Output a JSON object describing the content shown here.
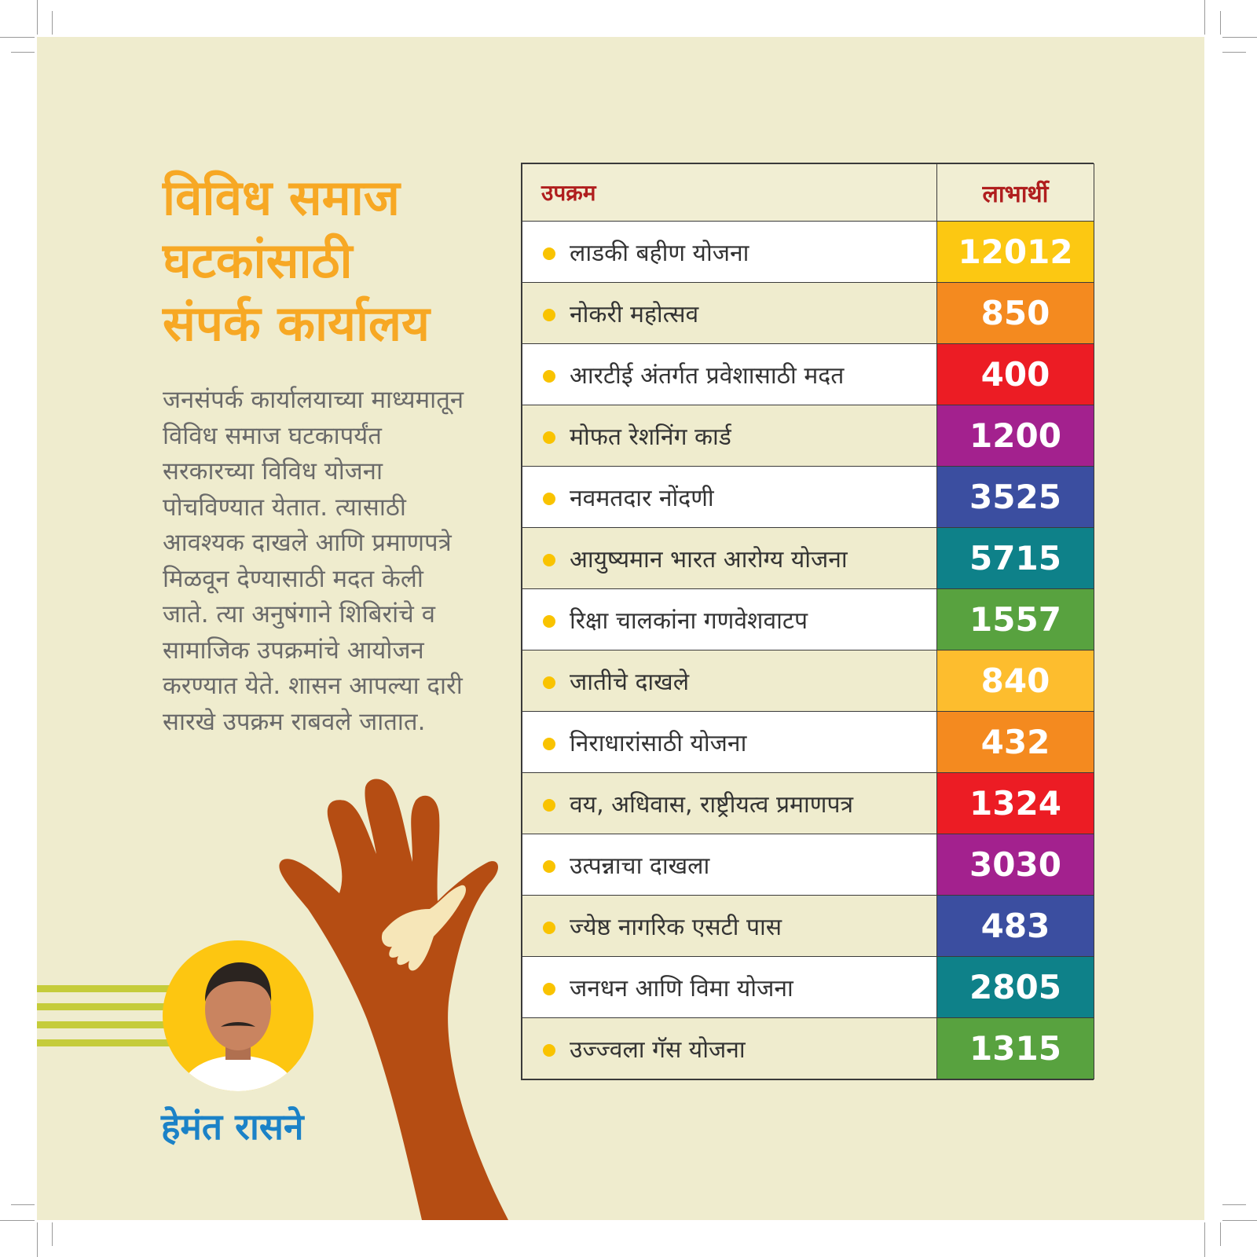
{
  "title": {
    "lines": [
      "विविध समाज",
      "घटकांसाठी",
      "संपर्क कार्यालय"
    ]
  },
  "description": "जनसंपर्क कार्यालयाच्या माध्यमातून विविध समाज घटकापर्यंत सरकारच्या विविध योजना पोचविण्यात येतात. त्यासाठी आवश्यक दाखले आणि प्रमाणपत्रे मिळवून देण्यासाठी मदत केली जाते. त्या अनुषंगाने शिबिरांचे व सामाजिक उपक्रमांचे आयोजन करण्यात येते. शासन आपल्या दारी सारखे उपक्रम राबवले जातात.",
  "person": {
    "name": "हेमंत रासने"
  },
  "table": {
    "header": {
      "scheme": "उपक्रम",
      "beneficiaries": "लाभार्थी"
    },
    "rows": [
      {
        "scheme": "लाडकी बहीण योजना",
        "beneficiaries": "12012",
        "color": "#fcc812",
        "bg": "#ffffff"
      },
      {
        "scheme": "नोकरी महोत्सव",
        "beneficiaries": "850",
        "color": "#f48a1f",
        "bg": "#efecce"
      },
      {
        "scheme": "आरटीई अंतर्गत प्रवेशासाठी मदत",
        "beneficiaries": "400",
        "color": "#ec1c24",
        "bg": "#ffffff"
      },
      {
        "scheme": "मोफत रेशनिंग कार्ड",
        "beneficiaries": "1200",
        "color": "#a3218e",
        "bg": "#efecce"
      },
      {
        "scheme": "नवमतदार नोंदणी",
        "beneficiaries": "3525",
        "color": "#3b4ea0",
        "bg": "#ffffff"
      },
      {
        "scheme": "आयुष्यमान भारत आरोग्य योजना",
        "beneficiaries": "5715",
        "color": "#0e8189",
        "bg": "#efecce"
      },
      {
        "scheme": "रिक्षा चालकांना गणवेशवाटप",
        "beneficiaries": "1557",
        "color": "#58a23f",
        "bg": "#ffffff"
      },
      {
        "scheme": "जातीचे दाखले",
        "beneficiaries": "840",
        "color": "#fdbd2e",
        "bg": "#efecce"
      },
      {
        "scheme": "निराधारांसाठी योजना",
        "beneficiaries": "432",
        "color": "#f48a1f",
        "bg": "#ffffff"
      },
      {
        "scheme": "वय, अधिवास, राष्ट्रीयत्व प्रमाणपत्र",
        "beneficiaries": "1324",
        "color": "#ec1c24",
        "bg": "#efecce"
      },
      {
        "scheme": "उत्पन्नाचा दाखला",
        "beneficiaries": "3030",
        "color": "#a3218e",
        "bg": "#ffffff"
      },
      {
        "scheme": "ज्येष्ठ नागरिक एसटी पास",
        "beneficiaries": "483",
        "color": "#3b4ea0",
        "bg": "#efecce"
      },
      {
        "scheme": "जनधन आणि विमा योजना",
        "beneficiaries": "2805",
        "color": "#0e8189",
        "bg": "#ffffff"
      },
      {
        "scheme": "उज्ज्वला गॅस योजना",
        "beneficiaries": "1315",
        "color": "#58a23f",
        "bg": "#efecce"
      }
    ]
  },
  "colors": {
    "panel": "#efecce",
    "title": "#f7a824",
    "name": "#1b82c7",
    "hand": "#b54d13",
    "stripes": "#c5cc3a",
    "portrait_bg": "#fdc611"
  }
}
